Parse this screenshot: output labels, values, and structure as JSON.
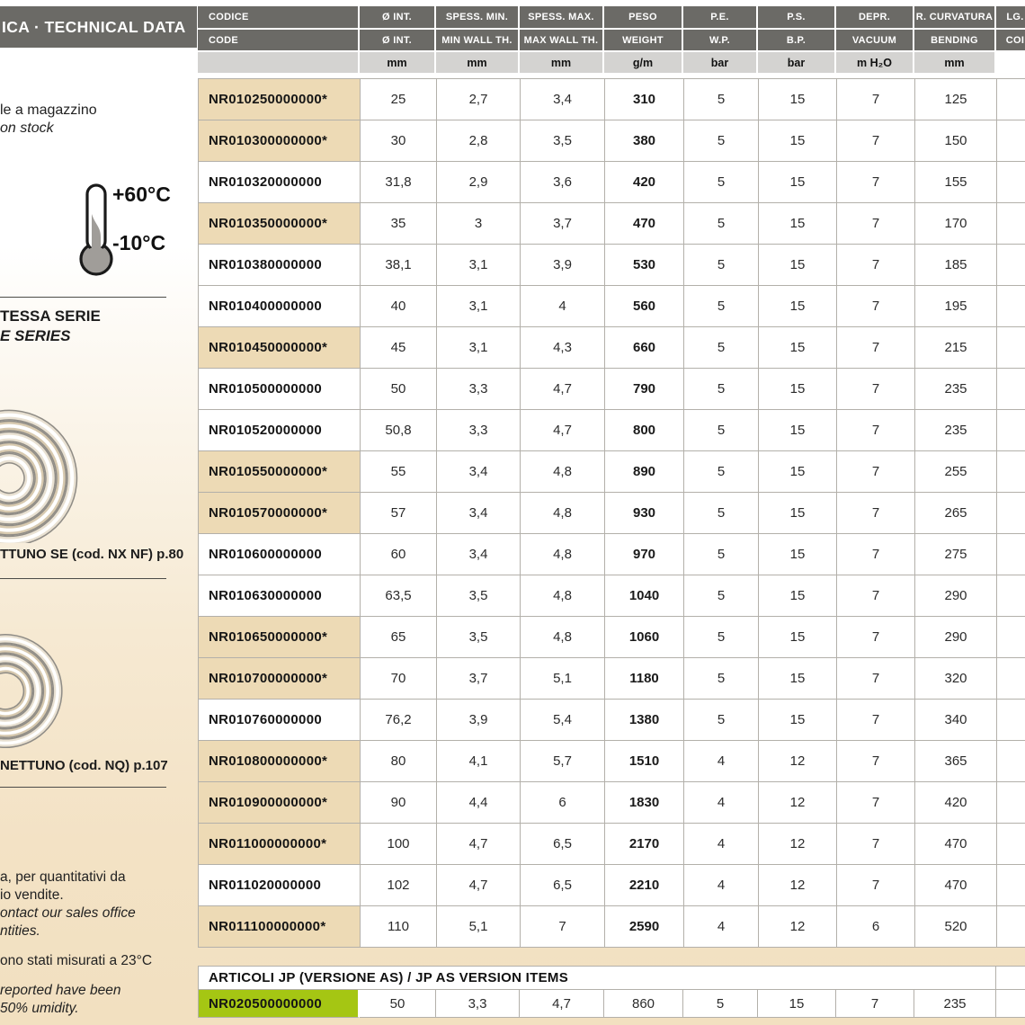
{
  "left_panel": {
    "header_title": "ICA · TECHNICAL DATA",
    "stock_note": {
      "it": "le a magazzino",
      "en": "on stock"
    },
    "temperature": {
      "max": "+60°C",
      "min": "-10°C"
    },
    "series_note": {
      "it": "TESSA SERIE",
      "en": "E SERIES"
    },
    "product_refs": [
      {
        "caption": "TTUNO SE (cod. NX NF) p.80"
      },
      {
        "caption": "NETTUNO (cod. NQ) p.107"
      }
    ],
    "notes": [
      {
        "text": "a, per quantitativi da",
        "italic": false
      },
      {
        "text": "io vendite.",
        "italic": false
      },
      {
        "text": "ontact our sales office",
        "italic": true
      },
      {
        "text": "ntities.",
        "italic": true
      },
      {
        "text": "",
        "italic": false
      },
      {
        "text": "ono stati misurati a 23°C",
        "italic": false
      },
      {
        "text": "",
        "italic": false
      },
      {
        "text": "reported have been",
        "italic": true
      },
      {
        "text": "50% umidity.",
        "italic": true
      }
    ]
  },
  "table": {
    "columns": [
      {
        "it": "CODICE",
        "en": "CODE",
        "unit": ""
      },
      {
        "it": "Ø INT.",
        "en": "Ø INT.",
        "unit": "mm"
      },
      {
        "it": "SPESS. MIN.",
        "en": "MIN WALL TH.",
        "unit": "mm"
      },
      {
        "it": "SPESS. MAX.",
        "en": "MAX WALL TH.",
        "unit": "mm"
      },
      {
        "it": "PESO",
        "en": "WEIGHT",
        "unit": "g/m"
      },
      {
        "it": "P.E.",
        "en": "W.P.",
        "unit": "bar"
      },
      {
        "it": "P.S.",
        "en": "B.P.",
        "unit": "bar"
      },
      {
        "it": "DEPR.",
        "en": "VACUUM",
        "unit": "m H₂O"
      },
      {
        "it": "R. CURVATURA",
        "en": "BENDING",
        "unit": "mm"
      },
      {
        "it": "LG.",
        "en": "COI",
        "unit": ""
      }
    ],
    "rows": [
      {
        "code": "NR010250000000*",
        "highlight": true,
        "values": [
          "25",
          "2,7",
          "3,4",
          "310",
          "5",
          "15",
          "7",
          "125",
          ""
        ]
      },
      {
        "code": "NR010300000000*",
        "highlight": true,
        "values": [
          "30",
          "2,8",
          "3,5",
          "380",
          "5",
          "15",
          "7",
          "150",
          ""
        ]
      },
      {
        "code": "NR010320000000",
        "highlight": false,
        "values": [
          "31,8",
          "2,9",
          "3,6",
          "420",
          "5",
          "15",
          "7",
          "155",
          ""
        ]
      },
      {
        "code": "NR010350000000*",
        "highlight": true,
        "values": [
          "35",
          "3",
          "3,7",
          "470",
          "5",
          "15",
          "7",
          "170",
          ""
        ]
      },
      {
        "code": "NR010380000000",
        "highlight": false,
        "values": [
          "38,1",
          "3,1",
          "3,9",
          "530",
          "5",
          "15",
          "7",
          "185",
          ""
        ]
      },
      {
        "code": "NR010400000000",
        "highlight": false,
        "values": [
          "40",
          "3,1",
          "4",
          "560",
          "5",
          "15",
          "7",
          "195",
          ""
        ]
      },
      {
        "code": "NR010450000000*",
        "highlight": true,
        "values": [
          "45",
          "3,1",
          "4,3",
          "660",
          "5",
          "15",
          "7",
          "215",
          ""
        ]
      },
      {
        "code": "NR010500000000",
        "highlight": false,
        "values": [
          "50",
          "3,3",
          "4,7",
          "790",
          "5",
          "15",
          "7",
          "235",
          ""
        ]
      },
      {
        "code": "NR010520000000",
        "highlight": false,
        "values": [
          "50,8",
          "3,3",
          "4,7",
          "800",
          "5",
          "15",
          "7",
          "235",
          ""
        ]
      },
      {
        "code": "NR010550000000*",
        "highlight": true,
        "values": [
          "55",
          "3,4",
          "4,8",
          "890",
          "5",
          "15",
          "7",
          "255",
          ""
        ]
      },
      {
        "code": "NR010570000000*",
        "highlight": true,
        "values": [
          "57",
          "3,4",
          "4,8",
          "930",
          "5",
          "15",
          "7",
          "265",
          ""
        ]
      },
      {
        "code": "NR010600000000",
        "highlight": false,
        "values": [
          "60",
          "3,4",
          "4,8",
          "970",
          "5",
          "15",
          "7",
          "275",
          ""
        ]
      },
      {
        "code": "NR010630000000",
        "highlight": false,
        "values": [
          "63,5",
          "3,5",
          "4,8",
          "1040",
          "5",
          "15",
          "7",
          "290",
          ""
        ]
      },
      {
        "code": "NR010650000000*",
        "highlight": true,
        "values": [
          "65",
          "3,5",
          "4,8",
          "1060",
          "5",
          "15",
          "7",
          "290",
          ""
        ]
      },
      {
        "code": "NR010700000000*",
        "highlight": true,
        "values": [
          "70",
          "3,7",
          "5,1",
          "1180",
          "5",
          "15",
          "7",
          "320",
          ""
        ]
      },
      {
        "code": "NR010760000000",
        "highlight": false,
        "values": [
          "76,2",
          "3,9",
          "5,4",
          "1380",
          "5",
          "15",
          "7",
          "340",
          ""
        ]
      },
      {
        "code": "NR010800000000*",
        "highlight": true,
        "values": [
          "80",
          "4,1",
          "5,7",
          "1510",
          "4",
          "12",
          "7",
          "365",
          ""
        ]
      },
      {
        "code": "NR010900000000*",
        "highlight": true,
        "values": [
          "90",
          "4,4",
          "6",
          "1830",
          "4",
          "12",
          "7",
          "420",
          ""
        ]
      },
      {
        "code": "NR011000000000*",
        "highlight": true,
        "values": [
          "100",
          "4,7",
          "6,5",
          "2170",
          "4",
          "12",
          "7",
          "470",
          ""
        ]
      },
      {
        "code": "NR011020000000",
        "highlight": false,
        "values": [
          "102",
          "4,7",
          "6,5",
          "2210",
          "4",
          "12",
          "7",
          "470",
          ""
        ]
      },
      {
        "code": "NR011100000000*",
        "highlight": true,
        "values": [
          "110",
          "5,1",
          "7",
          "2590",
          "4",
          "12",
          "6",
          "520",
          ""
        ]
      }
    ]
  },
  "jp_section": {
    "title": "ARTICOLI JP (VERSIONE AS) / JP AS VERSION ITEMS",
    "rows": [
      {
        "code": "NR020500000000",
        "values": [
          "50",
          "3,3",
          "4,7",
          "860",
          "5",
          "15",
          "7",
          "235",
          ""
        ]
      }
    ]
  },
  "colors": {
    "header_bg": "#6b6a66",
    "unit_row_bg": "#d4d3d1",
    "highlight_tan": "#eddab5",
    "jp_green": "#a5c613",
    "border_gray": "#b3b0aa",
    "page_tan": "#f2e0c0"
  }
}
